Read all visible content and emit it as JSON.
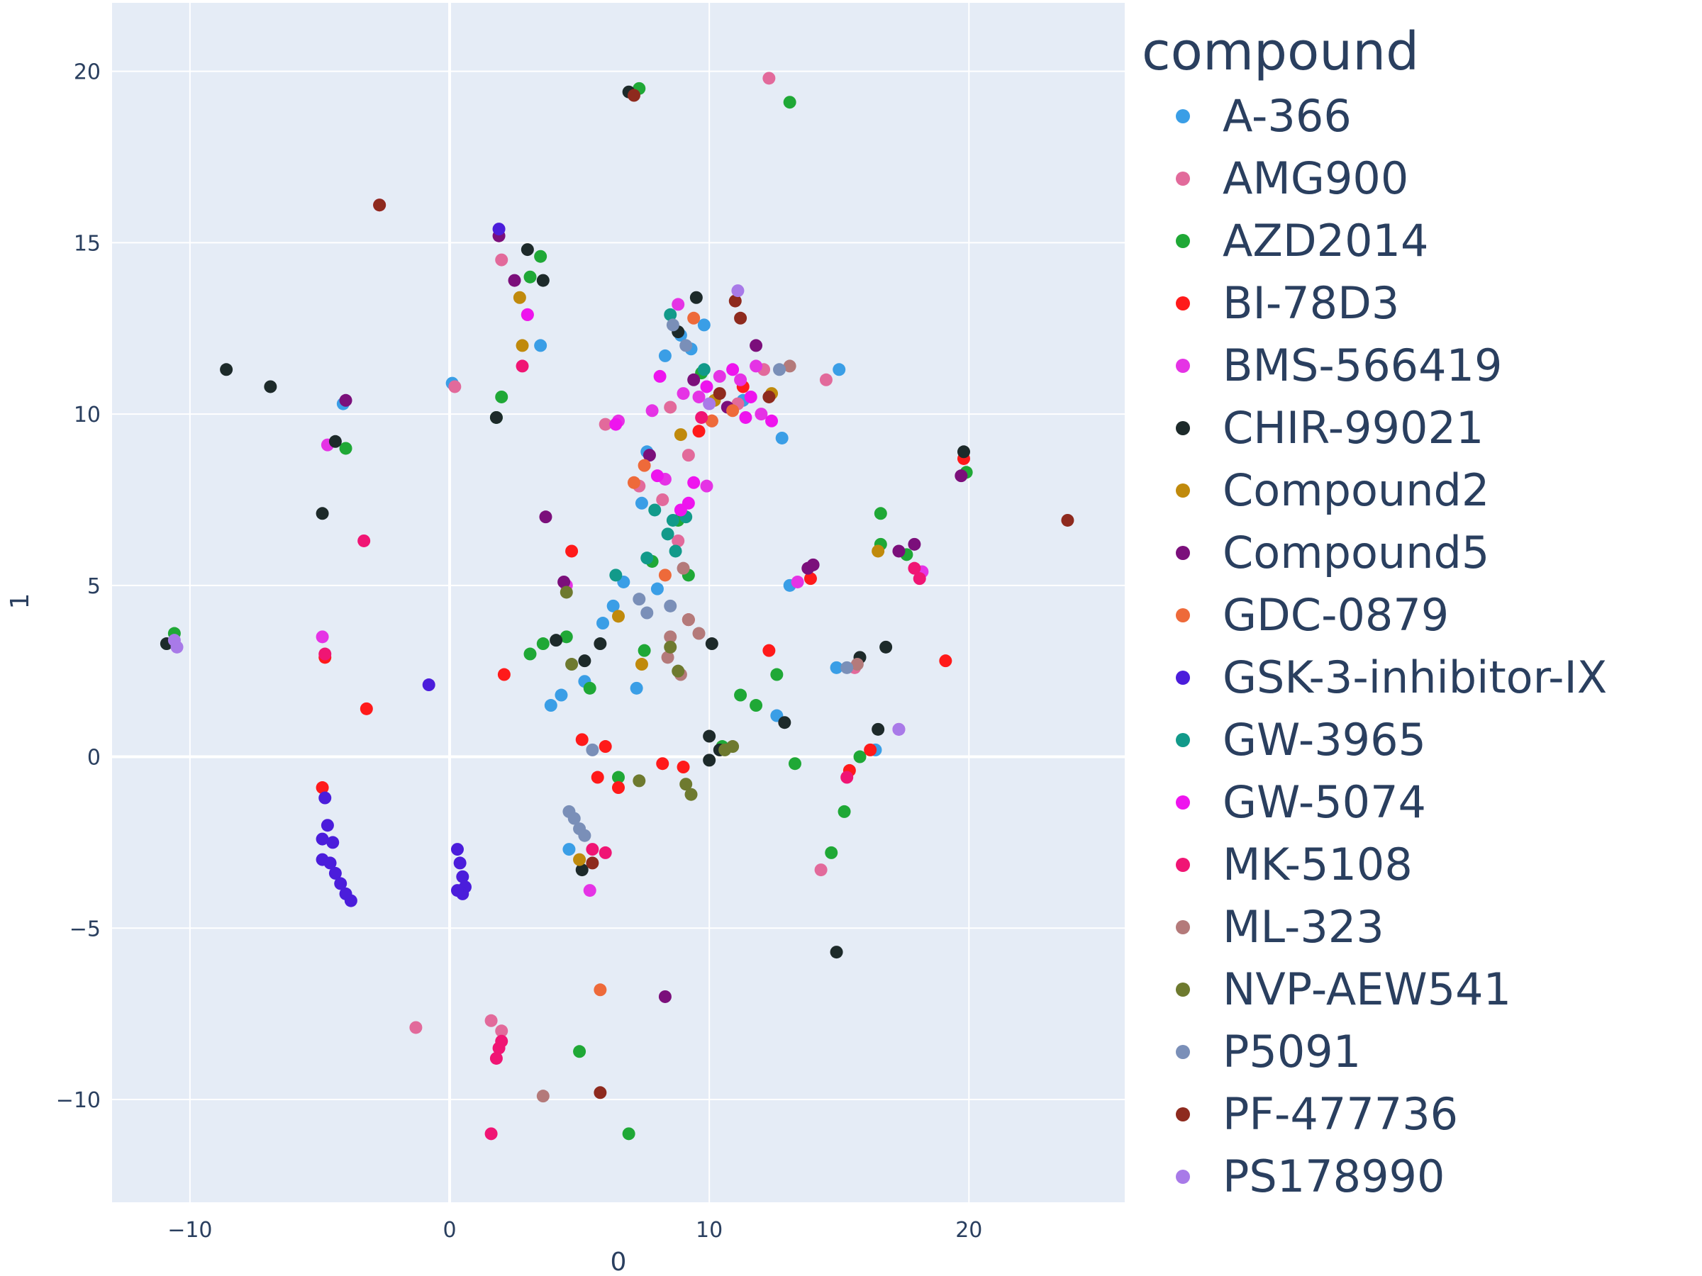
{
  "chart_data": {
    "type": "scatter",
    "xlabel": "0",
    "ylabel": "1",
    "xlim": [
      -13,
      26
    ],
    "ylim": [
      -13,
      22
    ],
    "x_ticks": [
      -10,
      0,
      10,
      20
    ],
    "y_ticks": [
      -10,
      -5,
      0,
      5,
      10,
      15,
      20
    ],
    "x_tick_labels": [
      "−10",
      "0",
      "10",
      "20"
    ],
    "y_tick_labels": [
      "−10",
      "−5",
      "0",
      "5",
      "10",
      "15",
      "20"
    ],
    "grid": true,
    "legend_title": "compound",
    "legend_position": "right",
    "series": [
      {
        "name": "A-366",
        "color": "#3a9ee6",
        "points": [
          [
            -4.1,
            10.3
          ],
          [
            0.1,
            10.9
          ],
          [
            3.5,
            12.0
          ],
          [
            4.3,
            1.8
          ],
          [
            5.2,
            2.2
          ],
          [
            5.9,
            3.9
          ],
          [
            6.3,
            4.4
          ],
          [
            6.7,
            5.1
          ],
          [
            7.2,
            2.0
          ],
          [
            7.4,
            7.4
          ],
          [
            7.6,
            8.9
          ],
          [
            8.0,
            4.9
          ],
          [
            8.3,
            11.7
          ],
          [
            8.9,
            12.3
          ],
          [
            9.3,
            11.9
          ],
          [
            9.8,
            12.6
          ],
          [
            11.3,
            10.4
          ],
          [
            12.6,
            1.2
          ],
          [
            12.8,
            9.3
          ],
          [
            13.1,
            5.0
          ],
          [
            14.9,
            2.6
          ],
          [
            15.0,
            11.3
          ],
          [
            16.4,
            0.2
          ],
          [
            3.9,
            1.5
          ],
          [
            4.6,
            -2.7
          ]
        ]
      },
      {
        "name": "AMG900",
        "color": "#e26a9b",
        "points": [
          [
            -1.3,
            -7.9
          ],
          [
            0.2,
            10.8
          ],
          [
            1.6,
            -7.7
          ],
          [
            2.0,
            -8.0
          ],
          [
            2.0,
            14.5
          ],
          [
            3.0,
            12.9
          ],
          [
            6.0,
            9.7
          ],
          [
            7.3,
            7.9
          ],
          [
            8.2,
            7.5
          ],
          [
            8.8,
            6.3
          ],
          [
            9.2,
            8.8
          ],
          [
            11.1,
            10.3
          ],
          [
            12.1,
            11.3
          ],
          [
            12.3,
            19.8
          ],
          [
            14.5,
            11.0
          ],
          [
            14.3,
            -3.3
          ],
          [
            15.6,
            2.6
          ],
          [
            8.5,
            10.2
          ]
        ]
      },
      {
        "name": "AZD2014",
        "color": "#1fa836",
        "points": [
          [
            -10.6,
            3.6
          ],
          [
            -4.0,
            9.0
          ],
          [
            1.8,
            9.9
          ],
          [
            2.0,
            10.5
          ],
          [
            3.1,
            14.0
          ],
          [
            3.5,
            14.6
          ],
          [
            3.1,
            3.0
          ],
          [
            3.6,
            3.3
          ],
          [
            4.5,
            3.5
          ],
          [
            5.0,
            -8.6
          ],
          [
            5.4,
            2.0
          ],
          [
            6.5,
            -0.6
          ],
          [
            6.9,
            -11.0
          ],
          [
            7.3,
            19.5
          ],
          [
            7.5,
            3.1
          ],
          [
            7.8,
            5.7
          ],
          [
            8.8,
            6.9
          ],
          [
            9.2,
            5.3
          ],
          [
            11.2,
            1.8
          ],
          [
            11.8,
            1.5
          ],
          [
            12.6,
            2.4
          ],
          [
            13.3,
            -0.2
          ],
          [
            14.7,
            -2.8
          ],
          [
            15.2,
            -1.6
          ],
          [
            15.8,
            0.0
          ],
          [
            16.6,
            7.1
          ],
          [
            16.6,
            6.2
          ],
          [
            17.6,
            5.9
          ],
          [
            19.9,
            8.3
          ],
          [
            13.1,
            19.1
          ],
          [
            10.5,
            0.3
          ],
          [
            9.7,
            11.2
          ]
        ]
      },
      {
        "name": "BI-78D3",
        "color": "#ff1a1a",
        "points": [
          [
            -4.9,
            -0.9
          ],
          [
            -4.8,
            2.9
          ],
          [
            -3.2,
            1.4
          ],
          [
            2.1,
            2.4
          ],
          [
            4.7,
            6.0
          ],
          [
            5.1,
            0.5
          ],
          [
            5.7,
            -0.6
          ],
          [
            6.0,
            0.3
          ],
          [
            6.5,
            -0.9
          ],
          [
            8.2,
            -0.2
          ],
          [
            9.2,
            4.0
          ],
          [
            10.1,
            9.8
          ],
          [
            11.3,
            10.8
          ],
          [
            12.3,
            3.1
          ],
          [
            13.9,
            5.2
          ],
          [
            15.4,
            -0.4
          ],
          [
            16.2,
            0.2
          ],
          [
            19.1,
            2.8
          ],
          [
            19.8,
            8.7
          ],
          [
            9.0,
            -0.3
          ],
          [
            9.6,
            9.5
          ]
        ]
      },
      {
        "name": "BMS-566419",
        "color": "#e533e5",
        "points": [
          [
            -4.9,
            3.5
          ],
          [
            -4.7,
            9.1
          ],
          [
            4.5,
            5.0
          ],
          [
            5.4,
            -3.9
          ],
          [
            6.5,
            9.8
          ],
          [
            7.8,
            10.1
          ],
          [
            8.3,
            8.1
          ],
          [
            8.8,
            13.2
          ],
          [
            9.0,
            10.6
          ],
          [
            9.6,
            10.5
          ],
          [
            10.4,
            11.1
          ],
          [
            11.2,
            11.0
          ],
          [
            11.8,
            11.4
          ],
          [
            13.4,
            5.1
          ],
          [
            17.3,
            0.8
          ],
          [
            18.2,
            5.4
          ],
          [
            9.9,
            7.9
          ],
          [
            12.0,
            10.0
          ]
        ]
      },
      {
        "name": "CHIR-99021",
        "color": "#1d2a2a",
        "points": [
          [
            -10.9,
            3.3
          ],
          [
            -8.6,
            11.3
          ],
          [
            -6.9,
            10.8
          ],
          [
            -4.9,
            7.1
          ],
          [
            -4.4,
            9.2
          ],
          [
            1.8,
            9.9
          ],
          [
            3.0,
            14.8
          ],
          [
            3.6,
            13.9
          ],
          [
            4.1,
            3.4
          ],
          [
            5.2,
            2.8
          ],
          [
            5.8,
            3.3
          ],
          [
            6.9,
            19.4
          ],
          [
            8.8,
            12.4
          ],
          [
            9.5,
            13.4
          ],
          [
            10.1,
            3.3
          ],
          [
            10.0,
            0.6
          ],
          [
            10.4,
            0.2
          ],
          [
            12.9,
            1.0
          ],
          [
            14.9,
            -5.7
          ],
          [
            15.8,
            2.9
          ],
          [
            16.8,
            3.2
          ],
          [
            16.5,
            0.8
          ],
          [
            19.8,
            8.9
          ],
          [
            5.1,
            -3.3
          ],
          [
            10.0,
            -0.1
          ]
        ]
      },
      {
        "name": "Compound2",
        "color": "#c08a0c",
        "points": [
          [
            2.7,
            13.4
          ],
          [
            2.8,
            12.0
          ],
          [
            6.5,
            4.1
          ],
          [
            7.4,
            2.7
          ],
          [
            10.2,
            10.4
          ],
          [
            12.4,
            10.6
          ],
          [
            16.5,
            6.0
          ],
          [
            5.0,
            -3.0
          ],
          [
            8.9,
            9.4
          ]
        ]
      },
      {
        "name": "Compound5",
        "color": "#7b0f7b",
        "points": [
          [
            -4.0,
            10.4
          ],
          [
            1.9,
            15.2
          ],
          [
            2.5,
            13.9
          ],
          [
            3.7,
            7.0
          ],
          [
            4.4,
            5.1
          ],
          [
            8.3,
            -7.0
          ],
          [
            9.4,
            11.0
          ],
          [
            10.7,
            10.2
          ],
          [
            13.8,
            5.5
          ],
          [
            14.0,
            5.6
          ],
          [
            17.3,
            6.0
          ],
          [
            17.9,
            6.2
          ],
          [
            19.7,
            8.2
          ],
          [
            11.8,
            12.0
          ],
          [
            7.7,
            8.8
          ]
        ]
      },
      {
        "name": "GDC-0879",
        "color": "#ee6a3a",
        "points": [
          [
            5.8,
            -6.8
          ],
          [
            7.5,
            8.5
          ],
          [
            8.3,
            5.3
          ],
          [
            10.1,
            9.8
          ],
          [
            10.9,
            10.1
          ],
          [
            7.1,
            8.0
          ],
          [
            9.4,
            12.8
          ]
        ]
      },
      {
        "name": "GSK-3-inhibitor-IX",
        "color": "#4b1ddb",
        "points": [
          [
            -4.9,
            -2.4
          ],
          [
            -4.9,
            -3.0
          ],
          [
            -4.6,
            -3.1
          ],
          [
            -4.4,
            -3.4
          ],
          [
            -4.2,
            -3.7
          ],
          [
            -4.0,
            -4.0
          ],
          [
            -3.8,
            -4.2
          ],
          [
            -4.7,
            -2.0
          ],
          [
            -0.8,
            2.1
          ],
          [
            0.3,
            -2.7
          ],
          [
            0.4,
            -3.1
          ],
          [
            0.5,
            -3.5
          ],
          [
            0.6,
            -3.8
          ],
          [
            0.5,
            -4.0
          ],
          [
            0.3,
            -3.9
          ],
          [
            1.9,
            15.4
          ],
          [
            -4.8,
            -1.2
          ],
          [
            -4.5,
            -2.5
          ]
        ]
      },
      {
        "name": "GW-3965",
        "color": "#129a8a",
        "points": [
          [
            6.4,
            5.3
          ],
          [
            7.6,
            5.8
          ],
          [
            8.4,
            6.5
          ],
          [
            8.7,
            6.0
          ],
          [
            9.1,
            7.0
          ],
          [
            9.8,
            11.3
          ],
          [
            8.5,
            12.9
          ],
          [
            7.9,
            7.2
          ],
          [
            8.6,
            6.9
          ]
        ]
      },
      {
        "name": "GW-5074",
        "color": "#ee14ee",
        "points": [
          [
            3.0,
            12.9
          ],
          [
            6.4,
            9.7
          ],
          [
            8.0,
            8.2
          ],
          [
            8.9,
            7.2
          ],
          [
            9.2,
            7.4
          ],
          [
            9.4,
            8.0
          ],
          [
            10.9,
            11.3
          ],
          [
            11.4,
            9.9
          ],
          [
            12.4,
            9.8
          ],
          [
            8.1,
            11.1
          ],
          [
            9.9,
            10.8
          ],
          [
            11.6,
            10.5
          ]
        ]
      },
      {
        "name": "MK-5108",
        "color": "#f01574",
        "points": [
          [
            -3.3,
            6.3
          ],
          [
            -4.8,
            3.0
          ],
          [
            1.6,
            -11.0
          ],
          [
            1.9,
            -8.5
          ],
          [
            1.8,
            -8.8
          ],
          [
            2.0,
            -8.3
          ],
          [
            2.8,
            11.4
          ],
          [
            6.0,
            -2.8
          ],
          [
            5.5,
            -2.7
          ],
          [
            17.9,
            5.5
          ],
          [
            18.1,
            5.2
          ],
          [
            15.3,
            -0.6
          ],
          [
            -2.7,
            16.1
          ],
          [
            9.7,
            9.9
          ]
        ]
      },
      {
        "name": "ML-323",
        "color": "#b47a7a",
        "points": [
          [
            3.6,
            -9.9
          ],
          [
            8.4,
            2.9
          ],
          [
            8.9,
            2.4
          ],
          [
            9.2,
            4.0
          ],
          [
            9.6,
            3.6
          ],
          [
            8.5,
            3.5
          ],
          [
            9.0,
            5.5
          ],
          [
            13.1,
            11.4
          ],
          [
            15.7,
            2.7
          ]
        ]
      },
      {
        "name": "NVP-AEW541",
        "color": "#6e7a2f",
        "points": [
          [
            4.5,
            4.8
          ],
          [
            4.7,
            2.7
          ],
          [
            8.5,
            3.2
          ],
          [
            8.8,
            2.5
          ],
          [
            9.1,
            -0.8
          ],
          [
            9.3,
            -1.1
          ],
          [
            10.9,
            0.3
          ],
          [
            7.3,
            -0.7
          ],
          [
            10.6,
            0.2
          ]
        ]
      },
      {
        "name": "P5091",
        "color": "#7a8fb8",
        "points": [
          [
            4.6,
            -1.6
          ],
          [
            4.8,
            -1.8
          ],
          [
            5.0,
            -2.1
          ],
          [
            5.2,
            -2.3
          ],
          [
            5.5,
            0.2
          ],
          [
            7.3,
            4.6
          ],
          [
            7.6,
            4.2
          ],
          [
            8.5,
            4.4
          ],
          [
            9.1,
            12.0
          ],
          [
            12.7,
            11.3
          ],
          [
            15.3,
            2.6
          ],
          [
            8.6,
            12.6
          ]
        ]
      },
      {
        "name": "PF-477736",
        "color": "#8e2a1e",
        "points": [
          [
            -2.7,
            16.1
          ],
          [
            5.8,
            -9.8
          ],
          [
            7.1,
            19.3
          ],
          [
            11.0,
            13.3
          ],
          [
            11.2,
            12.8
          ],
          [
            12.3,
            10.5
          ],
          [
            23.8,
            6.9
          ],
          [
            10.4,
            10.6
          ],
          [
            5.5,
            -3.1
          ]
        ]
      },
      {
        "name": "PS178990",
        "color": "#a87ae8",
        "points": [
          [
            -10.5,
            3.2
          ],
          [
            -10.6,
            3.4
          ],
          [
            11.1,
            13.6
          ],
          [
            17.3,
            0.8
          ],
          [
            10.0,
            10.3
          ]
        ]
      }
    ]
  }
}
